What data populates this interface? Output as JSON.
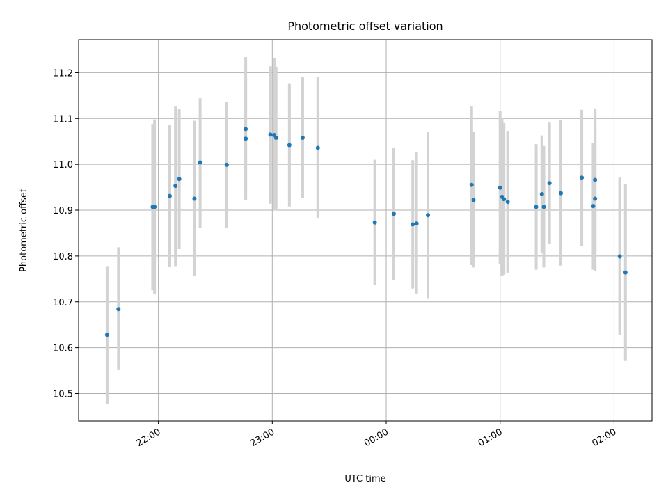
{
  "chart_data": {
    "type": "scatter",
    "title": "Photometric offset variation",
    "xlabel": "UTC time",
    "ylabel": "Photometric offset",
    "x_ticks": [
      "22:00",
      "23:00",
      "00:00",
      "01:00",
      "02:00"
    ],
    "y_ticks": [
      "10.5",
      "10.6",
      "10.7",
      "10.8",
      "10.9",
      "11.0",
      "11.1",
      "11.2"
    ],
    "xlim": [
      "21:18",
      "02:20"
    ],
    "ylim": [
      10.44,
      11.272
    ],
    "grid": true,
    "point_color": "#1f77b4",
    "errorbar_color": "#d3d3d3",
    "series": [
      {
        "points": [
          {
            "t": "21:33",
            "y": 10.628,
            "lo": 10.478,
            "hi": 10.778
          },
          {
            "t": "21:39",
            "y": 10.684,
            "lo": 10.551,
            "hi": 10.819
          },
          {
            "t": "21:57",
            "y": 10.907,
            "lo": 10.725,
            "hi": 11.088
          },
          {
            "t": "21:58",
            "y": 10.907,
            "lo": 10.717,
            "hi": 11.098
          },
          {
            "t": "22:06",
            "y": 10.931,
            "lo": 10.777,
            "hi": 11.085
          },
          {
            "t": "22:09",
            "y": 10.953,
            "lo": 10.778,
            "hi": 11.126
          },
          {
            "t": "22:11",
            "y": 10.968,
            "lo": 10.815,
            "hi": 11.12
          },
          {
            "t": "22:19",
            "y": 10.925,
            "lo": 10.757,
            "hi": 11.095
          },
          {
            "t": "22:22",
            "y": 11.004,
            "lo": 10.862,
            "hi": 11.144
          },
          {
            "t": "22:36",
            "y": 10.999,
            "lo": 10.862,
            "hi": 11.136
          },
          {
            "t": "22:46",
            "y": 11.077,
            "lo": 10.922,
            "hi": 11.234
          },
          {
            "t": "22:46",
            "y": 11.056,
            "lo": 10.926,
            "hi": 11.185
          },
          {
            "t": "22:59",
            "y": 11.065,
            "lo": 10.914,
            "hi": 11.214
          },
          {
            "t": "23:01",
            "y": 11.064,
            "lo": 10.899,
            "hi": 11.231
          },
          {
            "t": "23:02",
            "y": 11.058,
            "lo": 10.903,
            "hi": 11.213
          },
          {
            "t": "23:09",
            "y": 11.042,
            "lo": 10.908,
            "hi": 11.177
          },
          {
            "t": "23:16",
            "y": 11.058,
            "lo": 10.926,
            "hi": 11.19
          },
          {
            "t": "23:24",
            "y": 11.036,
            "lo": 10.883,
            "hi": 11.191
          },
          {
            "t": "23:54",
            "y": 10.873,
            "lo": 10.736,
            "hi": 11.01
          },
          {
            "t": "00:04",
            "y": 10.892,
            "lo": 10.748,
            "hi": 11.036
          },
          {
            "t": "00:14",
            "y": 10.869,
            "lo": 10.729,
            "hi": 11.009
          },
          {
            "t": "00:16",
            "y": 10.871,
            "lo": 10.718,
            "hi": 11.026
          },
          {
            "t": "00:22",
            "y": 10.889,
            "lo": 10.708,
            "hi": 11.07
          },
          {
            "t": "00:45",
            "y": 10.955,
            "lo": 10.78,
            "hi": 11.126
          },
          {
            "t": "00:46",
            "y": 10.922,
            "lo": 10.775,
            "hi": 11.07
          },
          {
            "t": "01:00",
            "y": 10.949,
            "lo": 10.782,
            "hi": 11.117
          },
          {
            "t": "01:01",
            "y": 10.929,
            "lo": 10.756,
            "hi": 11.102
          },
          {
            "t": "01:02",
            "y": 10.924,
            "lo": 10.759,
            "hi": 11.09
          },
          {
            "t": "01:04",
            "y": 10.918,
            "lo": 10.763,
            "hi": 11.073
          },
          {
            "t": "01:19",
            "y": 10.907,
            "lo": 10.77,
            "hi": 11.044
          },
          {
            "t": "01:22",
            "y": 10.935,
            "lo": 10.806,
            "hi": 11.063
          },
          {
            "t": "01:23",
            "y": 10.907,
            "lo": 10.775,
            "hi": 11.04
          },
          {
            "t": "01:26",
            "y": 10.959,
            "lo": 10.827,
            "hi": 11.091
          },
          {
            "t": "01:32",
            "y": 10.937,
            "lo": 10.779,
            "hi": 11.096
          },
          {
            "t": "01:43",
            "y": 10.971,
            "lo": 10.822,
            "hi": 11.119
          },
          {
            "t": "01:49",
            "y": 10.909,
            "lo": 10.77,
            "hi": 11.046
          },
          {
            "t": "01:50",
            "y": 10.925,
            "lo": 10.768,
            "hi": 11.08
          },
          {
            "t": "01:50",
            "y": 10.966,
            "lo": 10.81,
            "hi": 11.122
          },
          {
            "t": "02:03",
            "y": 10.799,
            "lo": 10.627,
            "hi": 10.971
          },
          {
            "t": "02:06",
            "y": 10.764,
            "lo": 10.571,
            "hi": 10.957
          }
        ]
      }
    ]
  }
}
